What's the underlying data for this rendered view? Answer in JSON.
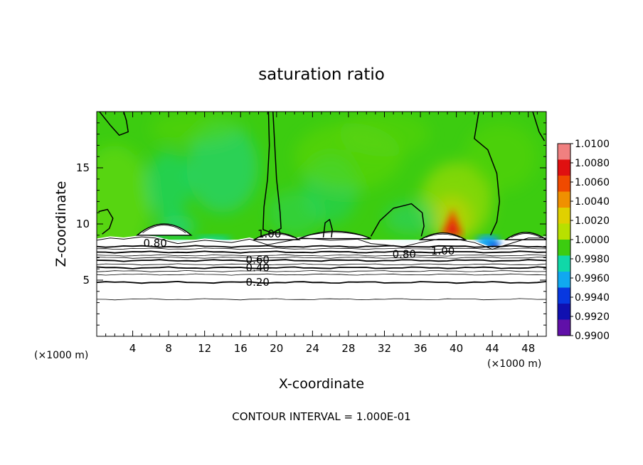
{
  "chart_data": {
    "type": "heatmap",
    "title": "saturation ratio",
    "xlabel": "X-coordinate",
    "ylabel": "Z-coordinate",
    "x_unit": "(×1000 m)",
    "z_unit": "(×1000 m)",
    "xlim": [
      0,
      50
    ],
    "ylim": [
      0,
      20
    ],
    "x_ticks": [
      4,
      8,
      12,
      16,
      20,
      24,
      28,
      32,
      36,
      40,
      44,
      48
    ],
    "y_ticks": [
      5,
      10,
      15
    ],
    "colorbar": {
      "min": 0.99,
      "max": 1.01,
      "labels": [
        "1.0100",
        "1.0080",
        "1.0060",
        "1.0040",
        "1.0020",
        "1.0000",
        "0.9980",
        "0.9960",
        "0.9940",
        "0.9920",
        "0.9900"
      ],
      "colors": [
        "#f08080",
        "#e01010",
        "#f04a00",
        "#f09000",
        "#e0d000",
        "#b8e000",
        "#3ccc10",
        "#10d8a8",
        "#10a8f0",
        "#0838e0",
        "#1010b0",
        "#6010a8"
      ]
    },
    "contour_levels": [
      0.2,
      0.4,
      0.6,
      0.8,
      1.0
    ],
    "contour_labels": [
      {
        "text": "0.20",
        "x": 17.9,
        "z": 4.8
      },
      {
        "text": "0.40",
        "x": 17.9,
        "z": 6.1
      },
      {
        "text": "0.60",
        "x": 17.9,
        "z": 6.8
      },
      {
        "text": "0.80",
        "x": 6.5,
        "z": 8.3
      },
      {
        "text": "0.80",
        "x": 34.2,
        "z": 7.3
      },
      {
        "text": "1.00",
        "x": 19.2,
        "z": 9.1
      },
      {
        "text": "1.00",
        "x": 38.5,
        "z": 7.6
      }
    ],
    "contour_interval_text": "CONTOUR INTERVAL = 1.000E-01"
  }
}
